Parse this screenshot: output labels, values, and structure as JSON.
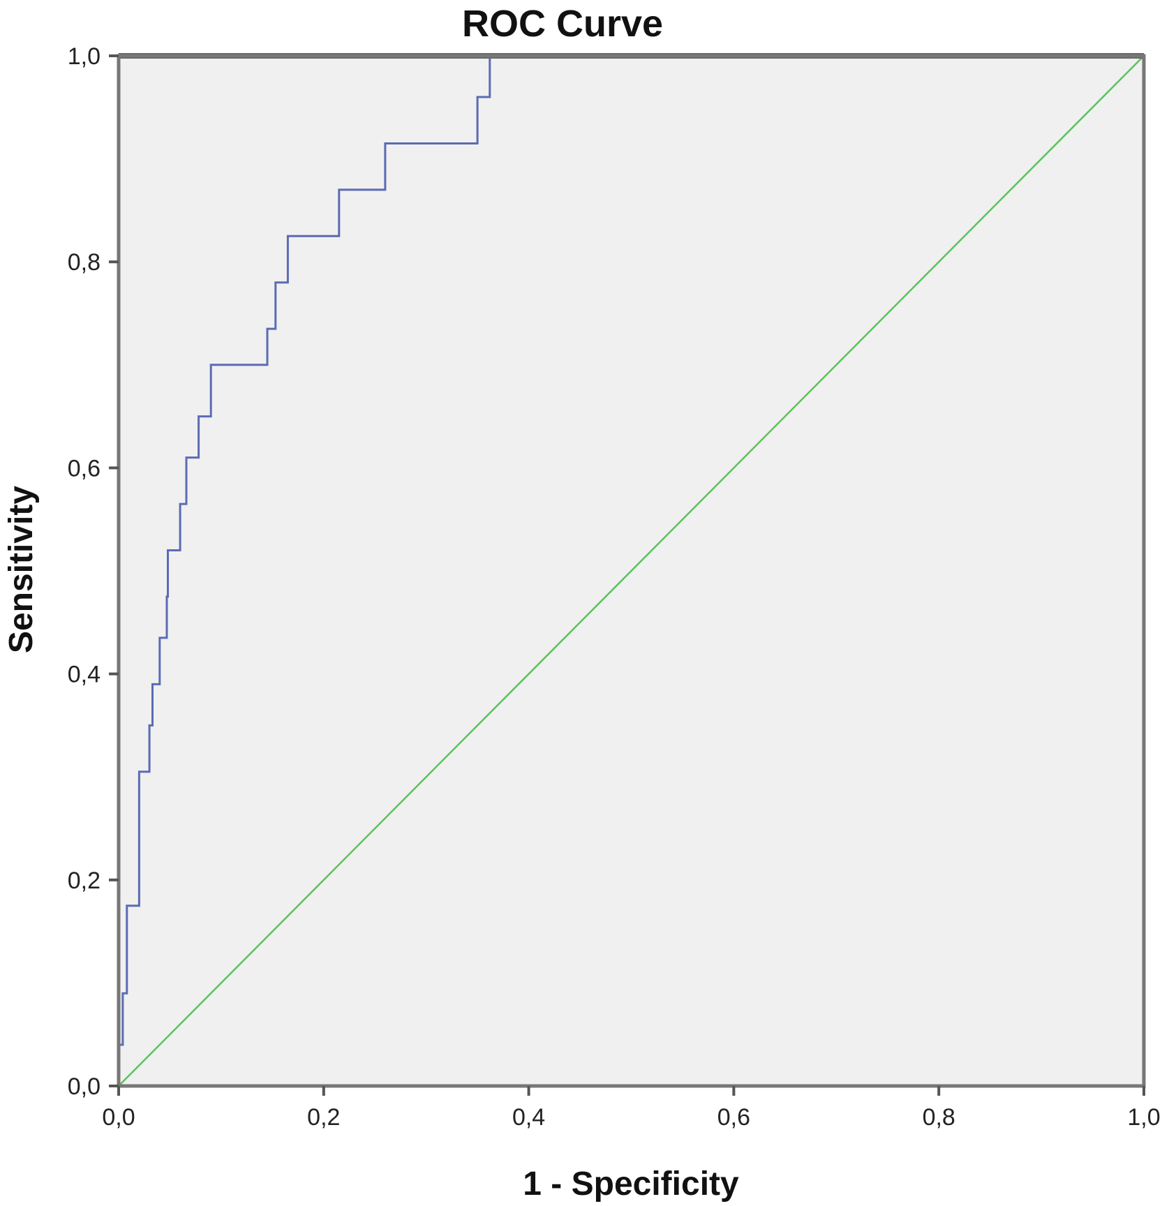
{
  "chart_data": {
    "type": "line",
    "title": "ROC Curve",
    "xlabel": "1 - Specificity",
    "ylabel": "Sensitivity",
    "xlim": [
      0,
      1
    ],
    "ylim": [
      0,
      1
    ],
    "x_ticks": [
      "0,0",
      "0,2",
      "0,4",
      "0,6",
      "0,8",
      "1,0"
    ],
    "y_ticks": [
      "0,0",
      "0,2",
      "0,4",
      "0,6",
      "0,8",
      "1,0"
    ],
    "grid": false,
    "background_color": "#f0f0f0",
    "series": [
      {
        "color": "#5b6bb5",
        "style": "step",
        "points": [
          [
            0.0,
            0.0
          ],
          [
            0.0,
            0.04
          ],
          [
            0.004,
            0.04
          ],
          [
            0.004,
            0.09
          ],
          [
            0.008,
            0.09
          ],
          [
            0.008,
            0.175
          ],
          [
            0.02,
            0.175
          ],
          [
            0.02,
            0.305
          ],
          [
            0.03,
            0.305
          ],
          [
            0.03,
            0.35
          ],
          [
            0.033,
            0.35
          ],
          [
            0.033,
            0.39
          ],
          [
            0.04,
            0.39
          ],
          [
            0.04,
            0.435
          ],
          [
            0.047,
            0.435
          ],
          [
            0.047,
            0.475
          ],
          [
            0.048,
            0.475
          ],
          [
            0.048,
            0.52
          ],
          [
            0.06,
            0.52
          ],
          [
            0.06,
            0.565
          ],
          [
            0.066,
            0.565
          ],
          [
            0.066,
            0.61
          ],
          [
            0.078,
            0.61
          ],
          [
            0.078,
            0.65
          ],
          [
            0.09,
            0.65
          ],
          [
            0.09,
            0.7
          ],
          [
            0.145,
            0.7
          ],
          [
            0.145,
            0.735
          ],
          [
            0.153,
            0.735
          ],
          [
            0.153,
            0.78
          ],
          [
            0.165,
            0.78
          ],
          [
            0.165,
            0.825
          ],
          [
            0.215,
            0.825
          ],
          [
            0.215,
            0.87
          ],
          [
            0.26,
            0.87
          ],
          [
            0.26,
            0.915
          ],
          [
            0.35,
            0.915
          ],
          [
            0.35,
            0.96
          ],
          [
            0.362,
            0.96
          ],
          [
            0.362,
            1.0
          ],
          [
            1.0,
            1.0
          ]
        ]
      },
      {
        "color": "#5cc25c",
        "style": "line",
        "points": [
          [
            0.0,
            0.0
          ],
          [
            1.0,
            1.0
          ]
        ]
      }
    ]
  }
}
